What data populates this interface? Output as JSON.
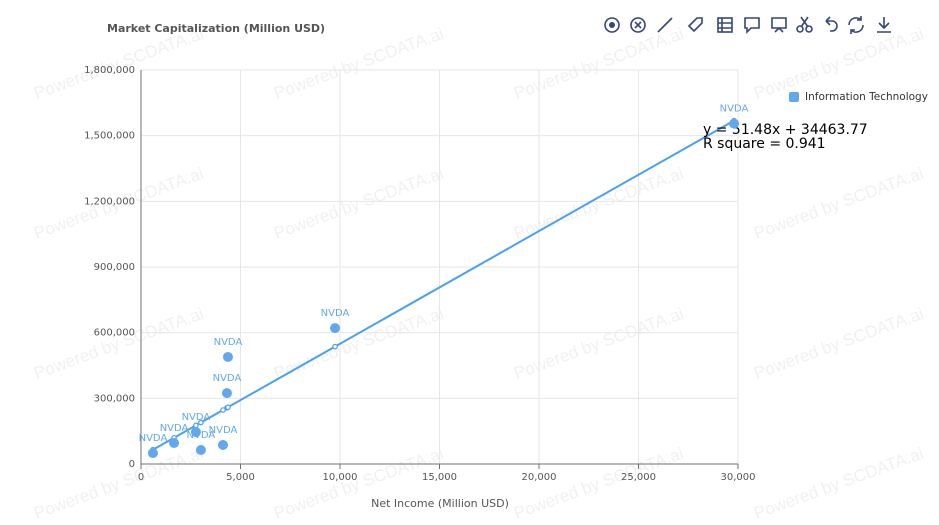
{
  "chart_data": {
    "type": "scatter",
    "title": "Market Capitalization (Million USD)",
    "x_label": "Net Income (Million USD)",
    "watermark": "Powered by SCDATA.ai",
    "series": [
      {
        "name": "Information Technology",
        "color": "#62a8ee",
        "x": [
          600,
          1660,
          2760,
          3010,
          4120,
          4320,
          4370,
          9750,
          29800
        ],
        "values": [
          50000,
          96000,
          146000,
          64000,
          87000,
          324000,
          489000,
          621000,
          1555000
        ],
        "labels": [
          "NVDA",
          "NVDA",
          "NVDA",
          "NVDA",
          "NVDA",
          "NVDA",
          "NVDA",
          "NVDA",
          "NVDA"
        ]
      }
    ],
    "regression": {
      "color": "#4a9ff0",
      "slope": 51.48,
      "intercept": 34463.77,
      "equation": "y = 51.48x + 34463.77",
      "r_square_label": "R square = 0.941"
    },
    "xlim": [
      0,
      30000
    ],
    "ylim": [
      0,
      1800000
    ],
    "xticks": [
      0,
      {
        "value": 5000,
        "label": "5,000"
      },
      {
        "value": 10000,
        "label": "10,000"
      },
      {
        "value": 15000,
        "label": "15,000"
      },
      {
        "value": 20000,
        "label": "20,000"
      },
      {
        "value": 25000,
        "label": "25,000"
      },
      {
        "value": 30000,
        "label": "30,000"
      }
    ],
    "yticks": [
      0,
      {
        "value": 300000,
        "label": "300,000"
      },
      {
        "value": 600000,
        "label": "600,000"
      },
      {
        "value": 900000,
        "label": "900,000"
      },
      {
        "value": 1200000,
        "label": "1,200,000"
      },
      {
        "value": 1500000,
        "label": "1,500,000"
      },
      {
        "value": 1800000,
        "label": "1,800,000"
      }
    ],
    "grid": true,
    "legend": "top-right"
  }
}
